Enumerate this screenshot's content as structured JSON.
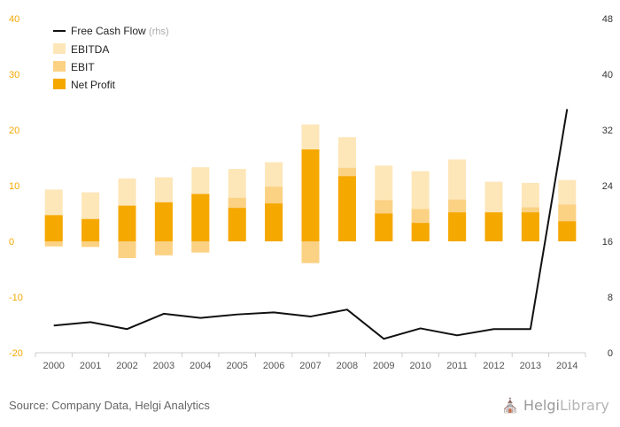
{
  "source_text": "Source: Company Data, Helgi Analytics",
  "logo": {
    "name": "Helgi",
    "suffix": "Library",
    "icon": "helgi-library-icon"
  },
  "colors": {
    "ebitda": "#fde6b8",
    "ebit": "#fbd183",
    "net_profit": "#f5a800",
    "fcf": "#111111",
    "left_tick": "#f5a800",
    "axis": "#cccccc"
  },
  "chart_data": {
    "type": "bar",
    "categories": [
      "2000",
      "2001",
      "2002",
      "2003",
      "2004",
      "2005",
      "2006",
      "2007",
      "2008",
      "2009",
      "2010",
      "2011",
      "2012",
      "2013",
      "2014"
    ],
    "y_left": {
      "ylim": [
        -20,
        40
      ],
      "ticks": [
        -20,
        -10,
        0,
        10,
        20,
        30,
        40
      ]
    },
    "y_right": {
      "ylim": [
        0,
        48
      ],
      "ticks": [
        0,
        8,
        16,
        24,
        32,
        40,
        48
      ]
    },
    "grid": false,
    "legend_position": "top-left",
    "series": [
      {
        "name": "EBITDA",
        "kind": "bar",
        "axis": "left",
        "values": [
          9.3,
          8.8,
          11.3,
          11.5,
          13.3,
          13.0,
          14.2,
          21.0,
          18.7,
          13.6,
          12.6,
          14.7,
          10.7,
          10.5,
          11.0
        ],
        "negative": [
          -0.9,
          -1.0,
          -3.0,
          -2.5,
          -2.0,
          0,
          0,
          -3.9,
          0,
          0,
          0,
          0,
          0,
          0,
          0
        ]
      },
      {
        "name": "EBIT",
        "kind": "bar",
        "axis": "left",
        "values": [
          4.7,
          4.0,
          6.4,
          7.0,
          8.5,
          7.8,
          9.8,
          16.5,
          13.2,
          7.4,
          5.8,
          7.5,
          5.2,
          6.1,
          6.6
        ],
        "negative": [
          -0.9,
          -1.0,
          -3.0,
          -2.5,
          -2.0,
          0,
          0,
          -3.9,
          0,
          0,
          0,
          0,
          0,
          0,
          0
        ]
      },
      {
        "name": "Net Profit",
        "kind": "bar",
        "axis": "left",
        "values": [
          4.7,
          4.0,
          6.4,
          7.0,
          8.5,
          6.0,
          6.8,
          16.5,
          11.7,
          5.0,
          3.3,
          5.2,
          5.2,
          5.2,
          3.6
        ]
      },
      {
        "name": "Free Cash Flow",
        "legend_suffix": "(rhs)",
        "kind": "line",
        "axis": "right",
        "values": [
          3.9,
          4.4,
          3.4,
          5.6,
          5.0,
          5.5,
          5.8,
          5.2,
          6.2,
          2.0,
          3.5,
          2.5,
          3.4,
          3.4,
          35.0
        ]
      }
    ]
  }
}
